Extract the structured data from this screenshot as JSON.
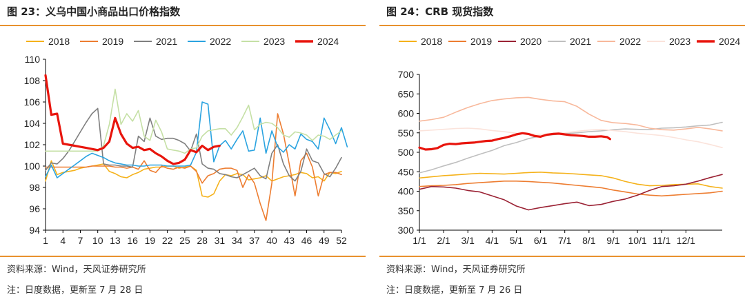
{
  "left": {
    "title": "图 23：义乌中国小商品出口价格指数",
    "source": "资料来源：Wind，天风证券研究所",
    "note": "注：日度数据，更新至 7 月 28 日"
  },
  "right": {
    "title": "图 24：CRB 现货指数",
    "source": "资料来源：Wind，天风证券研究所",
    "note": "注：日度数据，更新至 7 月 26 日"
  },
  "chart_data": [
    {
      "type": "line",
      "title": "",
      "xlabel": "",
      "ylabel": "",
      "xlim": [
        1,
        52
      ],
      "ylim": [
        94,
        110
      ],
      "x_ticks": [
        "1",
        "4",
        "7",
        "10",
        "13",
        "16",
        "19",
        "22",
        "25",
        "28",
        "31",
        "34",
        "37",
        "40",
        "43",
        "46",
        "49",
        "52"
      ],
      "y_ticks": [
        "94",
        "96",
        "98",
        "100",
        "102",
        "104",
        "106",
        "108",
        "110"
      ],
      "grid": false,
      "legend": "top",
      "series": [
        {
          "name": "2018",
          "color": "#f5b21b",
          "width": 1.6,
          "values": [
            98.6,
            100.5,
            99.2,
            99.4,
            99.5,
            99.6,
            99.8,
            99.9,
            100.0,
            100.1,
            100.2,
            99.5,
            99.3,
            99.0,
            98.9,
            99.2,
            99.4,
            99.7,
            99.8,
            99.9,
            99.9,
            100.0,
            100.0,
            99.8,
            99.9,
            100.0,
            99.6,
            97.2,
            97.1,
            97.4,
            98.6,
            99.2,
            99.1,
            99.3,
            99.2,
            98.7,
            98.8,
            98.9,
            99.1,
            98.6,
            98.8,
            99.0,
            99.1,
            99.2,
            99.4,
            99.3,
            98.9,
            99.0,
            98.6,
            99.4,
            99.3,
            99.5
          ]
        },
        {
          "name": "2019",
          "color": "#ed7d31",
          "width": 1.6,
          "values": [
            99.9,
            99.9,
            99.9,
            99.9,
            99.9,
            99.9,
            99.9,
            99.9,
            100.0,
            100.0,
            100.0,
            100.0,
            99.9,
            99.9,
            99.8,
            99.9,
            99.7,
            100.5,
            99.6,
            99.4,
            100.0,
            99.8,
            99.7,
            99.9,
            99.8,
            100.0,
            99.5,
            98.4,
            99.1,
            99.3,
            99.7,
            99.8,
            99.8,
            99.6,
            98.0,
            99.2,
            98.4,
            96.5,
            94.9,
            98.4,
            104.9,
            103.0,
            100.2,
            97.2,
            100.5,
            101.2,
            99.9,
            97.2,
            99.2,
            99.4,
            99.4,
            99.2
          ]
        },
        {
          "name": "2021",
          "color": "#7f7f7f",
          "width": 1.6,
          "values": [
            99.6,
            100.3,
            100.2,
            100.7,
            101.4,
            102.3,
            103.2,
            104.1,
            104.9,
            105.4,
            100.2,
            100.1,
            100.1,
            100.0,
            100.0,
            99.9,
            102.8,
            102.3,
            104.5,
            102.8,
            102.5,
            102.6,
            102.6,
            102.4,
            102.1,
            101.4,
            103.0,
            100.2,
            99.8,
            99.7,
            99.3,
            99.2,
            99.0,
            98.9,
            99.2,
            99.5,
            99.8,
            99.1,
            98.8,
            101.2,
            102.0,
            100.2,
            99.1,
            98.6,
            99.5,
            101.6,
            100.5,
            100.3,
            99.3,
            99.0,
            99.8,
            100.8
          ]
        },
        {
          "name": "2022",
          "color": "#2aa3e0",
          "width": 1.6,
          "values": [
            99.0,
            100.1,
            98.9,
            99.3,
            99.7,
            100.1,
            100.5,
            100.9,
            101.2,
            101.0,
            100.8,
            100.5,
            100.3,
            100.2,
            100.1,
            100.1,
            100.0,
            100.0,
            100.1,
            100.1,
            100.1,
            100.0,
            100.0,
            100.0,
            100.0,
            100.1,
            101.3,
            106.0,
            105.8,
            100.4,
            101.9,
            102.4,
            101.6,
            102.5,
            103.3,
            101.4,
            101.5,
            104.5,
            101.2,
            103.3,
            101.8,
            101.3,
            102.0,
            101.6,
            103.0,
            102.5,
            102.3,
            101.6,
            104.5,
            103.4,
            102.1,
            103.6,
            101.8
          ]
        },
        {
          "name": "2023",
          "color": "#c5e0a5",
          "width": 1.6,
          "values": [
            101.4,
            101.4,
            101.4,
            101.4,
            101.4,
            101.4,
            101.4,
            101.4,
            101.4,
            101.4,
            101.9,
            103.9,
            107.2,
            103.9,
            104.9,
            104.2,
            105.2,
            102.8,
            102.4,
            104.3,
            103.2,
            101.6,
            101.5,
            101.4,
            101.2,
            101.6,
            101.7,
            102.8,
            103.3,
            103.4,
            103.5,
            103.5,
            102.9,
            103.6,
            104.6,
            105.7,
            103.4,
            103.9,
            104.1,
            104.0,
            103.6,
            102.9,
            102.7,
            103.2,
            103.1,
            102.9,
            102.4,
            102.9,
            102.8,
            102.5,
            102.9,
            103.3
          ]
        },
        {
          "name": "2024",
          "color": "#e8150d",
          "width": 3.2,
          "values": [
            108.5,
            104.8,
            104.9,
            102.1,
            102.0,
            101.9,
            101.8,
            101.7,
            101.6,
            101.5,
            101.7,
            102.3,
            104.5,
            103.0,
            102.1,
            101.7,
            101.8,
            101.5,
            101.6,
            101.2,
            100.9,
            100.5,
            100.2,
            100.3,
            100.6,
            101.5,
            101.3,
            101.9,
            101.5,
            101.8,
            101.9
          ]
        }
      ]
    },
    {
      "type": "line",
      "title": "",
      "xlabel": "",
      "ylabel": "",
      "ylim": [
        300,
        700
      ],
      "x_ticks": [
        "1/1",
        "2/1",
        "3/1",
        "4/1",
        "5/1",
        "6/1",
        "7/1",
        "8/1",
        "9/1",
        "10/1",
        "11/1",
        "12/1"
      ],
      "y_ticks": [
        "300",
        "350",
        "400",
        "450",
        "500",
        "550",
        "600",
        "650",
        "700"
      ],
      "grid": false,
      "legend": "top",
      "series": [
        {
          "name": "2018",
          "color": "#f5b21b",
          "width": 1.6,
          "x": [
            0,
            0.5,
            1,
            1.5,
            2,
            2.5,
            3,
            3.5,
            4,
            4.5,
            5,
            5.5,
            6,
            6.5,
            7,
            7.5,
            8,
            8.5,
            9,
            9.5,
            10,
            10.5,
            11,
            11.5,
            12,
            12.5
          ],
          "values": [
            434,
            437,
            440,
            442,
            444,
            446,
            445,
            444,
            446,
            448,
            449,
            447,
            446,
            444,
            442,
            440,
            434,
            425,
            418,
            414,
            415,
            417,
            418,
            419,
            412,
            408
          ]
        },
        {
          "name": "2019",
          "color": "#ed7d31",
          "width": 1.6,
          "x": [
            0,
            0.5,
            1,
            1.5,
            2,
            2.5,
            3,
            3.5,
            4,
            4.5,
            5,
            5.5,
            6,
            6.5,
            7,
            7.5,
            8,
            8.5,
            9,
            9.5,
            10,
            10.5,
            11,
            11.5,
            12,
            12.5
          ],
          "values": [
            412,
            414,
            415,
            417,
            420,
            422,
            424,
            426,
            426,
            425,
            423,
            421,
            418,
            415,
            412,
            409,
            403,
            398,
            393,
            390,
            388,
            390,
            392,
            394,
            396,
            400
          ]
        },
        {
          "name": "2020",
          "color": "#9b2335",
          "width": 1.6,
          "x": [
            0,
            0.5,
            1,
            1.5,
            2,
            2.5,
            3,
            3.5,
            4,
            4.5,
            5,
            5.5,
            6,
            6.5,
            7,
            7.5,
            8,
            8.5,
            9,
            9.5,
            10,
            10.5,
            11,
            11.5,
            12,
            12.5
          ],
          "values": [
            405,
            412,
            411,
            408,
            402,
            398,
            388,
            378,
            362,
            352,
            358,
            363,
            368,
            372,
            363,
            366,
            374,
            380,
            390,
            402,
            412,
            414,
            418,
            426,
            435,
            443
          ]
        },
        {
          "name": "2021",
          "color": "#bfbfbf",
          "width": 1.6,
          "x": [
            0,
            0.5,
            1,
            1.5,
            2,
            2.5,
            3,
            3.5,
            4,
            4.5,
            5,
            5.5,
            6,
            6.5,
            7,
            7.5,
            8,
            8.5,
            9,
            9.5,
            10,
            10.5,
            11,
            11.5,
            12,
            12.5
          ],
          "values": [
            447,
            455,
            465,
            474,
            485,
            495,
            505,
            517,
            525,
            535,
            542,
            545,
            548,
            550,
            553,
            555,
            558,
            560,
            559,
            558,
            562,
            563,
            565,
            568,
            570,
            577
          ]
        },
        {
          "name": "2022",
          "color": "#f8b89b",
          "width": 1.6,
          "x": [
            0,
            0.5,
            1,
            1.5,
            2,
            2.5,
            3,
            3.5,
            4,
            4.5,
            5,
            5.5,
            6,
            6.5,
            7,
            7.5,
            8,
            8.5,
            9,
            9.5,
            10,
            10.5,
            11,
            11.5,
            12,
            12.5
          ],
          "values": [
            580,
            584,
            590,
            603,
            615,
            625,
            633,
            637,
            640,
            641,
            636,
            632,
            630,
            618,
            598,
            582,
            576,
            574,
            570,
            562,
            558,
            557,
            560,
            564,
            560,
            555
          ]
        },
        {
          "name": "2023",
          "color": "#fbe3db",
          "width": 1.6,
          "x": [
            0,
            0.5,
            1,
            1.5,
            2,
            2.5,
            3,
            3.5,
            4,
            4.5,
            5,
            5.5,
            6,
            6.5,
            7,
            7.5,
            8,
            8.5,
            9,
            9.5,
            10,
            10.5,
            11,
            11.5,
            12,
            12.5
          ],
          "values": [
            555,
            557,
            559,
            561,
            562,
            560,
            556,
            553,
            549,
            547,
            546,
            548,
            550,
            554,
            557,
            559,
            556,
            553,
            549,
            546,
            543,
            538,
            532,
            527,
            520,
            512
          ]
        },
        {
          "name": "2024",
          "color": "#e8150d",
          "width": 3.2,
          "x": [
            0,
            0.25,
            0.5,
            0.75,
            1,
            1.25,
            1.5,
            1.75,
            2,
            2.25,
            2.5,
            2.75,
            3,
            3.25,
            3.5,
            3.75,
            4,
            4.25,
            4.5,
            4.75,
            5,
            5.25,
            5.5,
            5.75,
            6,
            6.25,
            6.5,
            6.75,
            7,
            7.25,
            7.5,
            7.75,
            7.87
          ],
          "values": [
            512,
            507,
            508,
            511,
            519,
            522,
            521,
            523,
            524,
            525,
            527,
            529,
            530,
            534,
            537,
            541,
            546,
            549,
            547,
            542,
            540,
            545,
            547,
            548,
            546,
            544,
            543,
            542,
            540,
            540,
            541,
            539,
            534
          ]
        }
      ]
    }
  ]
}
